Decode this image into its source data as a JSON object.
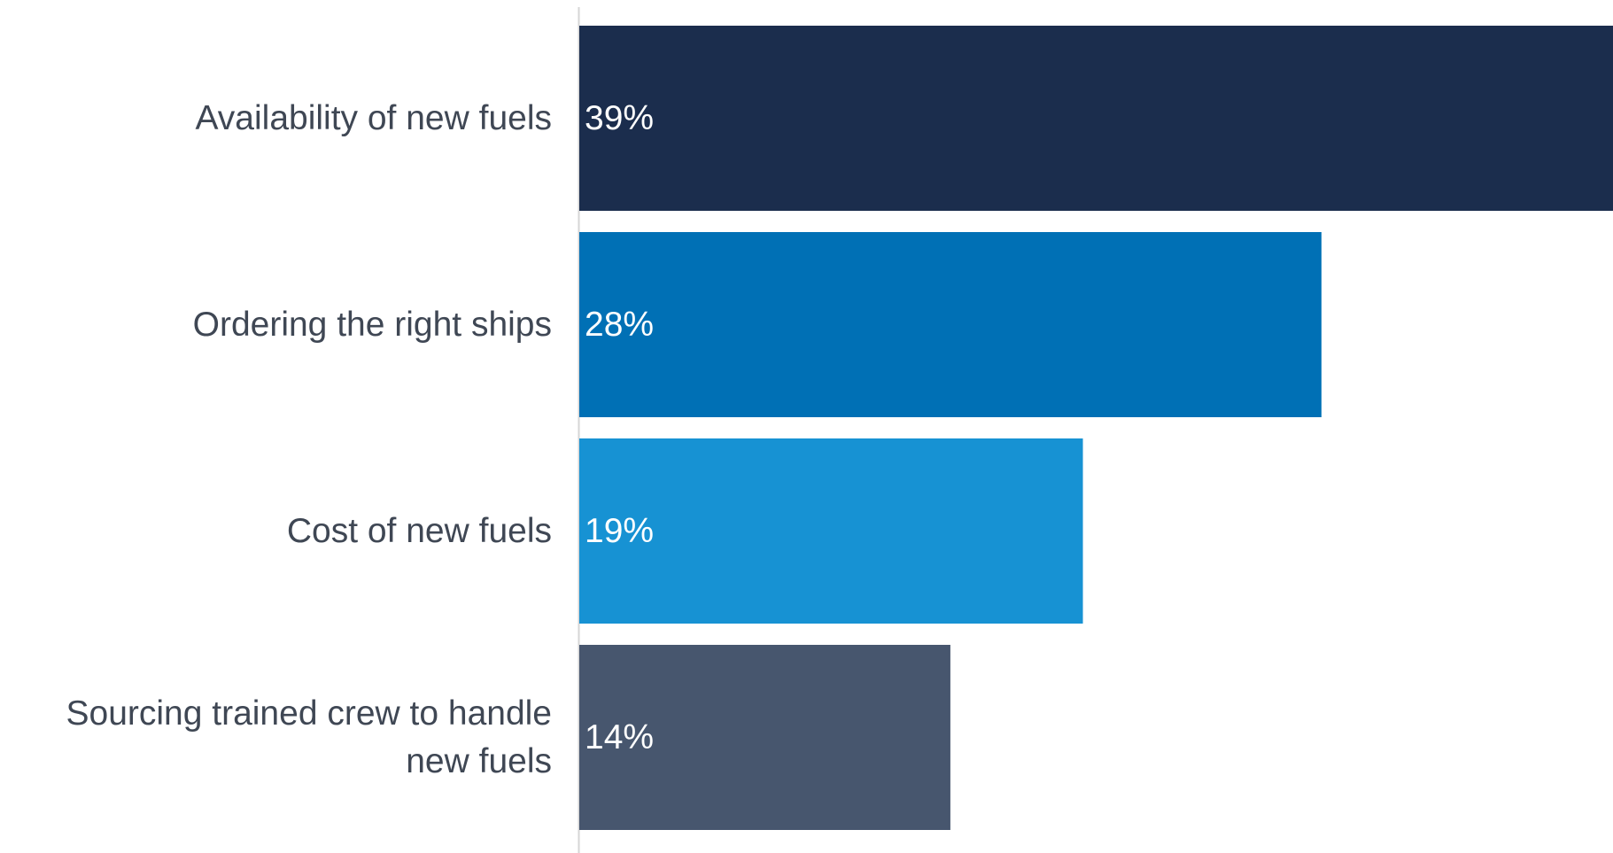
{
  "chart_data": {
    "type": "bar",
    "orientation": "horizontal",
    "categories": [
      "Availability of new fuels",
      "Ordering the right ships",
      "Cost of new fuels",
      "Sourcing trained crew to handle new fuels"
    ],
    "values": [
      39,
      28,
      19,
      14
    ],
    "value_labels": [
      "39%",
      "28%",
      "19%",
      "14%"
    ],
    "unit": "%",
    "colors": [
      "#1b2d4d",
      "#0070b5",
      "#1792d3",
      "#47566e"
    ],
    "xlim": [
      0,
      39
    ],
    "grid": false,
    "legend": "none",
    "title": "",
    "xlabel": "",
    "ylabel": ""
  }
}
